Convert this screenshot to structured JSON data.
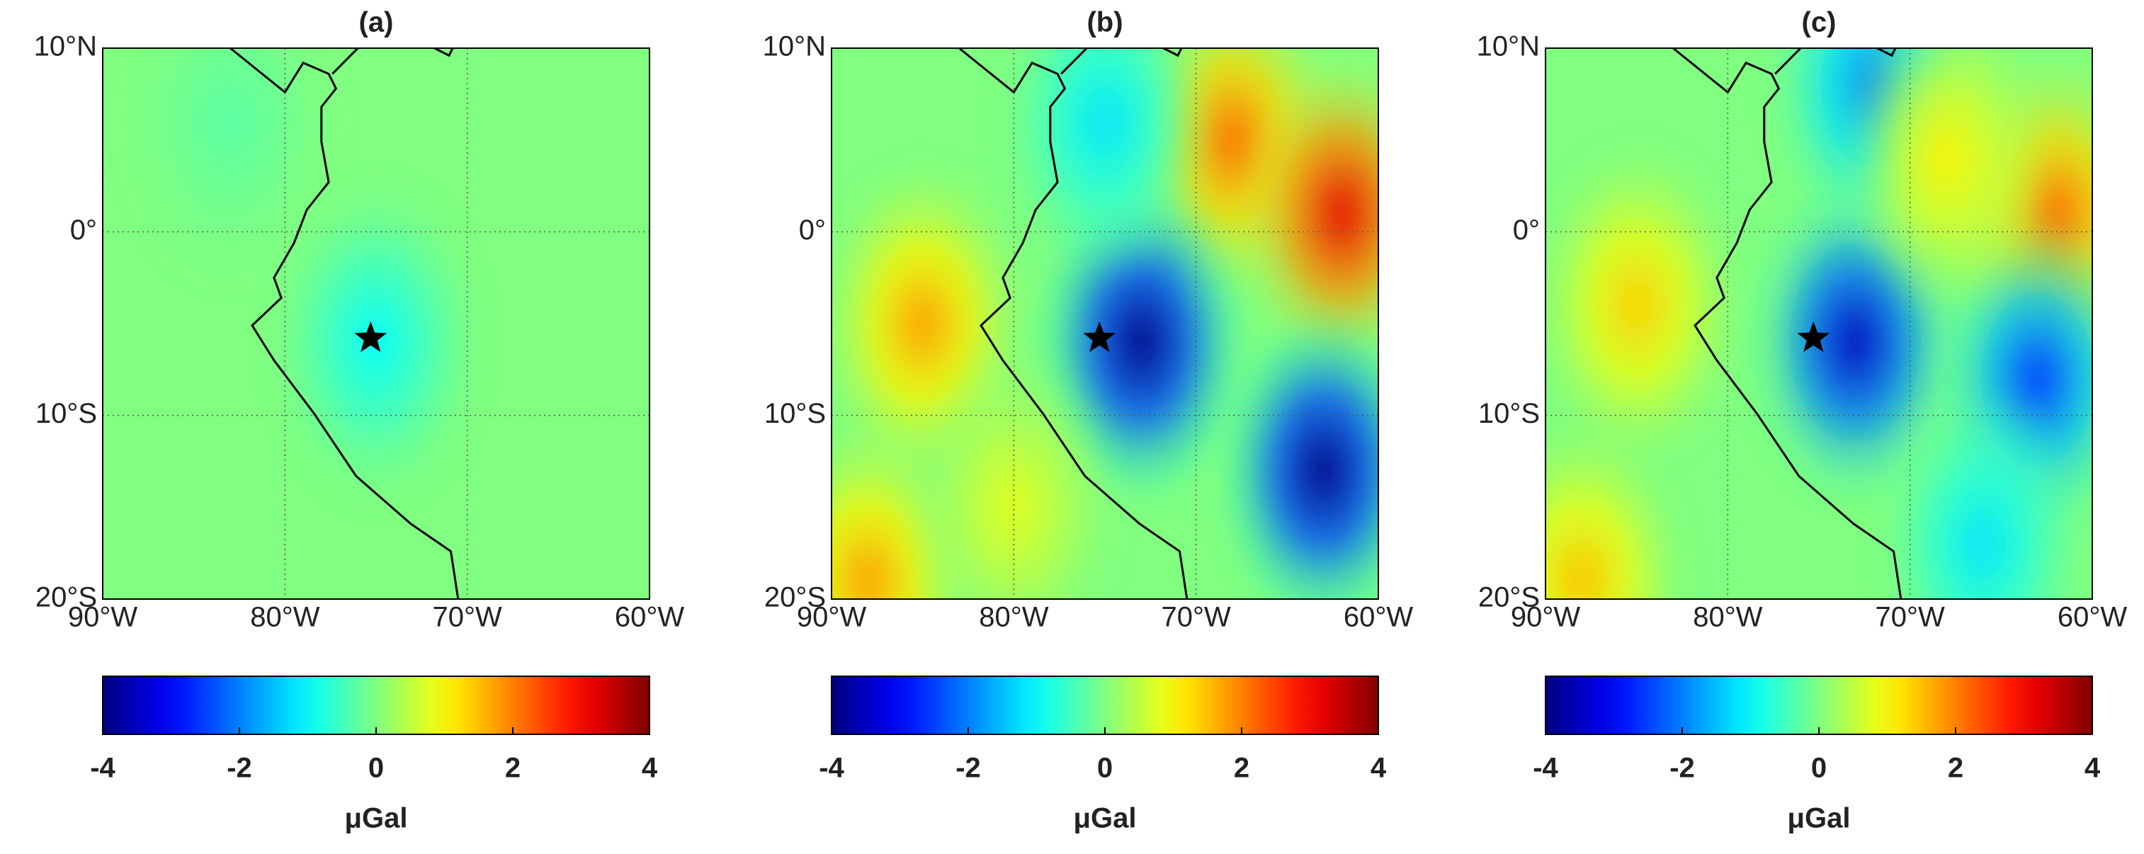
{
  "chart_data": [
    {
      "type": "heatmap",
      "title": "(a)",
      "xlim": [
        -90,
        -60
      ],
      "ylim": [
        -20,
        10
      ],
      "xticks": [
        {
          "value": -90,
          "label": "90°W"
        },
        {
          "value": -80,
          "label": "80°W"
        },
        {
          "value": -70,
          "label": "70°W"
        },
        {
          "value": -60,
          "label": "60°W"
        }
      ],
      "yticks": [
        {
          "value": 10,
          "label": "10°N"
        },
        {
          "value": 0,
          "label": "0°"
        },
        {
          "value": -10,
          "label": "10°S"
        },
        {
          "value": -20,
          "label": "20°S"
        }
      ],
      "grid": true,
      "background": 0,
      "anomalies": [
        {
          "lon": -75,
          "lat": -6,
          "value": -1
        },
        {
          "lon": -83,
          "lat": 6,
          "value": -0.3
        }
      ],
      "marker": {
        "lon": -75.3,
        "lat": -5.8
      },
      "colorbar": {
        "clim": [
          -4,
          4
        ],
        "ticks": [
          -4,
          -2,
          0,
          2,
          4
        ],
        "label": "μGal"
      }
    },
    {
      "type": "heatmap",
      "title": "(b)",
      "xlim": [
        -90,
        -60
      ],
      "ylim": [
        -20,
        10
      ],
      "xticks": [
        {
          "value": -90,
          "label": "90°W"
        },
        {
          "value": -80,
          "label": "80°W"
        },
        {
          "value": -70,
          "label": "70°W"
        },
        {
          "value": -60,
          "label": "60°W"
        }
      ],
      "yticks": [
        {
          "value": 10,
          "label": "10°N"
        },
        {
          "value": 0,
          "label": "0°"
        },
        {
          "value": -10,
          "label": "10°S"
        },
        {
          "value": -20,
          "label": "20°S"
        }
      ],
      "grid": true,
      "background": 0,
      "anomalies": [
        {
          "lon": -85,
          "lat": -5,
          "value": 1.8
        },
        {
          "lon": -68,
          "lat": 5,
          "value": 2.2
        },
        {
          "lon": -62,
          "lat": 1,
          "value": 3.2
        },
        {
          "lon": -73,
          "lat": -6,
          "value": -4
        },
        {
          "lon": -63,
          "lat": -13,
          "value": -4
        },
        {
          "lon": -88,
          "lat": -19,
          "value": 1.8
        },
        {
          "lon": -75,
          "lat": 6,
          "value": -1.2
        },
        {
          "lon": -80,
          "lat": -15,
          "value": 0.8
        }
      ],
      "marker": {
        "lon": -75.3,
        "lat": -5.8
      },
      "colorbar": {
        "clim": [
          -4,
          4
        ],
        "ticks": [
          -4,
          -2,
          0,
          2,
          4
        ],
        "label": "μGal"
      }
    },
    {
      "type": "heatmap",
      "title": "(c)",
      "xlim": [
        -90,
        -60
      ],
      "ylim": [
        -20,
        10
      ],
      "xticks": [
        {
          "value": -90,
          "label": "90°W"
        },
        {
          "value": -80,
          "label": "80°W"
        },
        {
          "value": -70,
          "label": "70°W"
        },
        {
          "value": -60,
          "label": "60°W"
        }
      ],
      "yticks": [
        {
          "value": 10,
          "label": "10°N"
        },
        {
          "value": 0,
          "label": "0°"
        },
        {
          "value": -10,
          "label": "10°S"
        },
        {
          "value": -20,
          "label": "20°S"
        }
      ],
      "grid": true,
      "background": 0,
      "anomalies": [
        {
          "lon": -85,
          "lat": -4,
          "value": 1.4
        },
        {
          "lon": -62,
          "lat": 1,
          "value": 2.2
        },
        {
          "lon": -73,
          "lat": -6,
          "value": -3.5
        },
        {
          "lon": -63,
          "lat": -8,
          "value": -2.6
        },
        {
          "lon": -72,
          "lat": 8,
          "value": -2
        },
        {
          "lon": -68,
          "lat": 4,
          "value": 1.1
        },
        {
          "lon": -88,
          "lat": -19,
          "value": 1.5
        },
        {
          "lon": -66,
          "lat": -17,
          "value": -1.2
        }
      ],
      "marker": {
        "lon": -75.3,
        "lat": -5.8
      },
      "colorbar": {
        "clim": [
          -4,
          4
        ],
        "ticks": [
          -4,
          -2,
          0,
          2,
          4
        ],
        "label": "μGal"
      }
    }
  ]
}
